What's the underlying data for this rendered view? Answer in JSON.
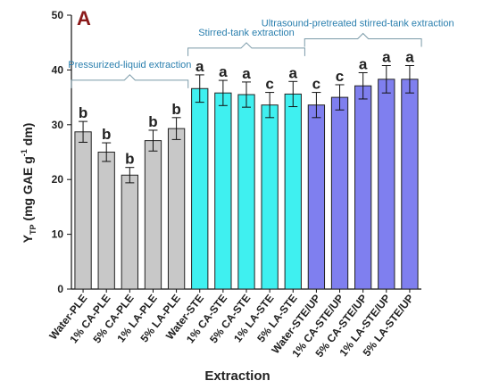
{
  "chart_data": {
    "type": "bar",
    "panel_label": "A",
    "xlabel": "Extraction",
    "ylabel_parts": {
      "main": "Y",
      "sub": "TP",
      "unit_pre": " (mg GAE g",
      "sup": "-1",
      "unit_post": " dm)"
    },
    "ylim": [
      0,
      50
    ],
    "yticks": [
      0,
      10,
      20,
      30,
      40,
      50
    ],
    "grid": false,
    "categories": [
      "Water-PLE",
      "1% CA-PLE",
      "5% CA-PLE",
      "1% LA-PLE",
      "5% LA-PLE",
      "Water-STE",
      "1% CA-STE",
      "5% CA-STE",
      "1% LA-STE",
      "5% LA-STE",
      "Water-STE/UP",
      "1% CA-STE/UP",
      "5% CA-STE/UP",
      "1% LA-STE/UP",
      "5% LA-STE/UP"
    ],
    "values": [
      28.7,
      25.0,
      20.8,
      27.1,
      29.3,
      36.6,
      35.8,
      35.5,
      33.6,
      35.6,
      33.6,
      35.0,
      37.1,
      38.3,
      38.3
    ],
    "errors": [
      1.9,
      1.7,
      1.4,
      1.9,
      2.0,
      2.5,
      2.3,
      2.3,
      2.3,
      2.3,
      2.3,
      2.3,
      2.4,
      2.5,
      2.5
    ],
    "significance_letters": [
      "b",
      "b",
      "b",
      "b",
      "b",
      "a",
      "a",
      "a",
      "c",
      "a",
      "c",
      "c",
      "a",
      "a",
      "a"
    ],
    "groups": [
      {
        "label": "Pressurized-liquid extraction",
        "start": 0,
        "end": 4,
        "color": "#c8c8c8"
      },
      {
        "label": "Stirred-tank extraction",
        "start": 5,
        "end": 9,
        "color": "#3ff0f0"
      },
      {
        "label": "Ultrasound-pretreated stirred-tank extraction",
        "start": 10,
        "end": 14,
        "color": "#7f7fef"
      }
    ]
  }
}
